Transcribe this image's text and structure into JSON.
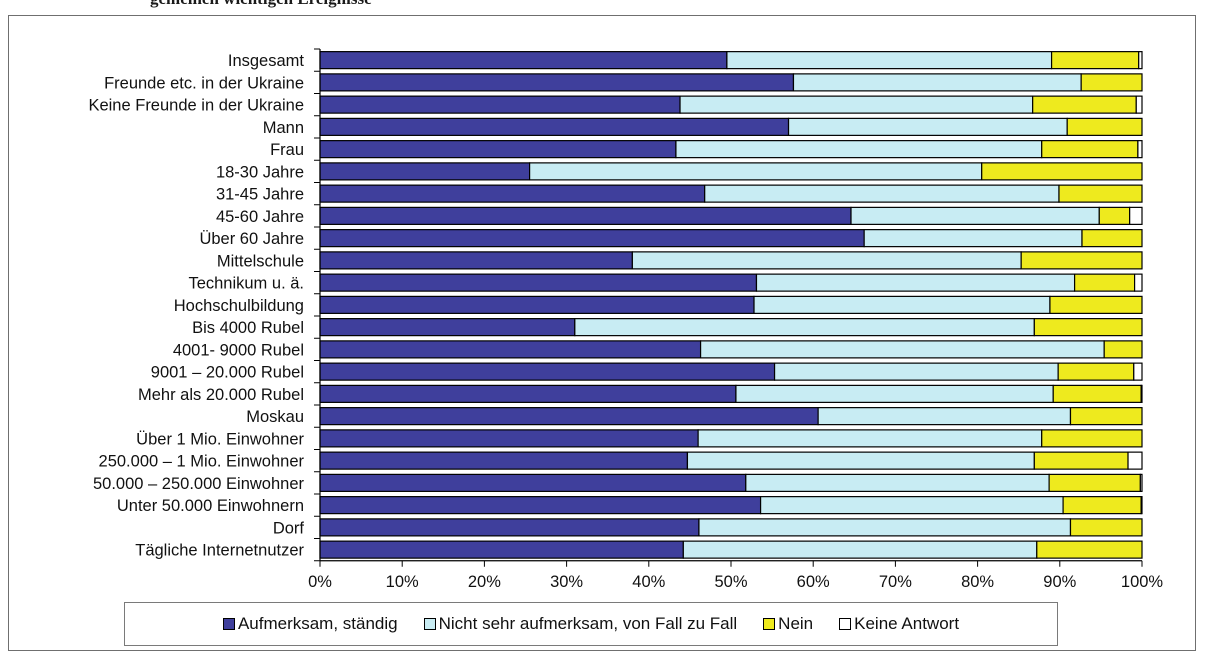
{
  "title_fragment": "gemeinen wichtigen Ereignisse",
  "chart_data": {
    "type": "bar",
    "orientation": "horizontal",
    "stacked": true,
    "percent": true,
    "categories": [
      "Insgesamt",
      "Freunde etc. in der Ukraine",
      "Keine Freunde in der Ukraine",
      "Mann",
      "Frau",
      "18-30 Jahre",
      "31-45  Jahre",
      "45-60 Jahre",
      "Über 60 Jahre",
      "Mittelschule",
      "Technikum u. ä.",
      "Hochschulbildung",
      "Bis 4000 Rubel",
      "4001- 9000 Rubel",
      "9001 – 20.000 Rubel",
      "Mehr als 20.000 Rubel",
      "Moskau",
      "Über 1 Mio. Einwohner",
      "250.000 – 1 Mio. Einwohner",
      "50.000 – 250.000 Einwohner",
      "Unter 50.000 Einwohnern",
      "Dorf",
      "Tägliche Internetnutzer"
    ],
    "series": [
      {
        "name": "Aufmerksam, ständig",
        "color": "#3f3f9c",
        "values": [
          49.5,
          57.6,
          43.8,
          57.0,
          43.3,
          25.5,
          46.8,
          64.6,
          66.2,
          38.0,
          53.1,
          52.8,
          31.0,
          46.3,
          55.3,
          50.6,
          60.6,
          46.0,
          44.7,
          51.8,
          53.6,
          46.1,
          44.2
        ]
      },
      {
        "name": "Nicht sehr aufmerksam, von Fall zu Fall",
        "color": "#c8ecf3",
        "values": [
          39.5,
          35.0,
          42.9,
          33.9,
          44.5,
          55.0,
          43.1,
          30.2,
          26.5,
          47.3,
          38.7,
          36.0,
          55.9,
          49.1,
          34.5,
          38.6,
          30.7,
          41.8,
          42.2,
          36.9,
          36.8,
          45.2,
          43.0
        ]
      },
      {
        "name": "Nein",
        "color": "#eeea1e",
        "values": [
          10.6,
          7.4,
          12.6,
          9.1,
          11.7,
          19.5,
          10.1,
          3.7,
          7.3,
          14.7,
          7.3,
          11.2,
          13.1,
          4.6,
          9.2,
          10.7,
          8.7,
          12.2,
          11.4,
          11.1,
          9.5,
          8.7,
          12.8
        ]
      },
      {
        "name": "Keine Antwort",
        "color": "#ffffff",
        "values": [
          0.4,
          0.0,
          0.7,
          0.0,
          0.5,
          0.0,
          0.0,
          1.5,
          0.0,
          0.0,
          0.9,
          0.0,
          0.0,
          0.0,
          1.0,
          0.1,
          0.0,
          0.0,
          1.7,
          0.2,
          0.1,
          0.0,
          0.0
        ]
      }
    ],
    "xlim": [
      0,
      100
    ],
    "xticks": [
      "0%",
      "10%",
      "20%",
      "30%",
      "40%",
      "50%",
      "60%",
      "70%",
      "80%",
      "90%",
      "100%"
    ],
    "grid": false,
    "legend_position": "bottom"
  }
}
